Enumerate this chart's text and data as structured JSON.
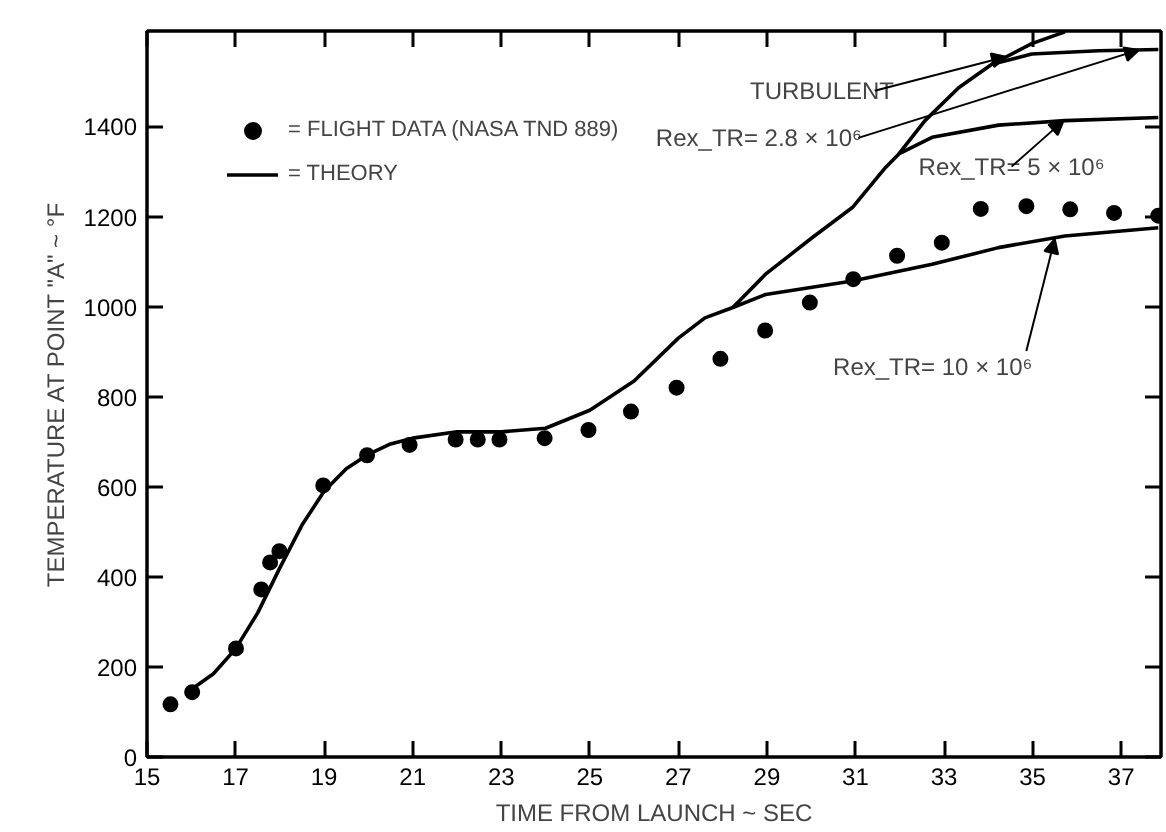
{
  "chart_data": {
    "type": "line",
    "xlabel": "TIME FROM LAUNCH ~ SEC",
    "ylabel": "TEMPERATURE AT POINT \"A\" ~ °F",
    "xlim": [
      15,
      37.9
    ],
    "ylim": [
      0,
      1612
    ],
    "xticks": [
      15,
      17,
      19,
      21,
      23,
      25,
      27,
      29,
      31,
      33,
      35,
      37
    ],
    "yticks": [
      0,
      200,
      400,
      600,
      800,
      1000,
      1200,
      1400
    ],
    "grid": false,
    "legend": "top left",
    "series": [
      {
        "name": "= FLIGHT DATA (NASA TND 889)",
        "type": "scatter",
        "marker": "circle",
        "color": "#000000",
        "x": [
          15.53,
          16.02,
          17.01,
          17.58,
          17.78,
          17.99,
          18.98,
          19.97,
          20.93,
          21.97,
          22.47,
          22.96,
          23.98,
          24.97,
          25.93,
          26.96,
          27.95,
          28.96,
          29.97,
          30.95,
          31.94,
          32.95,
          33.83,
          34.86,
          35.85,
          36.84,
          37.84
        ],
        "values": [
          117,
          144,
          241,
          372,
          432,
          457,
          603,
          670,
          693,
          705,
          705,
          705,
          708,
          726,
          767,
          820,
          884,
          947,
          1009,
          1061,
          1113,
          1142,
          1217,
          1223,
          1216,
          1208,
          1202
        ]
      },
      {
        "name": "= THEORY",
        "color": "#000000",
        "x": [
          16.0,
          16.5,
          17.0,
          17.5,
          18.0,
          18.5,
          19.0,
          19.5,
          20.0,
          20.5,
          21.0,
          22.0,
          23.0,
          24.0,
          25.0,
          26.0,
          27.0,
          27.6,
          28.23,
          28.97,
          30.93,
          32.73,
          34.23,
          35.73,
          37.84
        ],
        "values": [
          150,
          185,
          240,
          320,
          420,
          515,
          590,
          640,
          672,
          695,
          708,
          722,
          722,
          730,
          770,
          835,
          930,
          975,
          998,
          1027,
          1057,
          1094,
          1131,
          1157,
          1175
        ]
      },
      {
        "color": "#000000",
        "x": [
          28.23,
          28.97,
          30.02,
          30.93,
          31.68,
          31.98,
          32.73,
          34.23,
          35.73,
          37.84
        ],
        "values": [
          998,
          1072,
          1153,
          1220,
          1309,
          1339,
          1376,
          1403,
          1413,
          1420
        ]
      },
      {
        "color": "#000000",
        "x": [
          31.98,
          32.57,
          33.33,
          34.08,
          34.98,
          36.48,
          37.84
        ],
        "values": [
          1339,
          1413,
          1486,
          1538,
          1561,
          1568,
          1571
        ]
      },
      {
        "color": "#000000",
        "x": [
          34.08,
          34.98,
          35.73
        ],
        "values": [
          1538,
          1584,
          1610
        ]
      }
    ],
    "annotations": [
      {
        "text": "TURBULENT",
        "x": 34.4,
        "y": 1555
      },
      {
        "text": "Rex_TR= 2.8 × 10⁶",
        "x": 37.4,
        "y": 1570
      },
      {
        "text": "Rex_TR= 5 × 10⁶",
        "x": 35.7,
        "y": 1413
      },
      {
        "text": "Rex_TR= 10 × 10⁶",
        "x": 35.5,
        "y": 1150
      }
    ]
  }
}
